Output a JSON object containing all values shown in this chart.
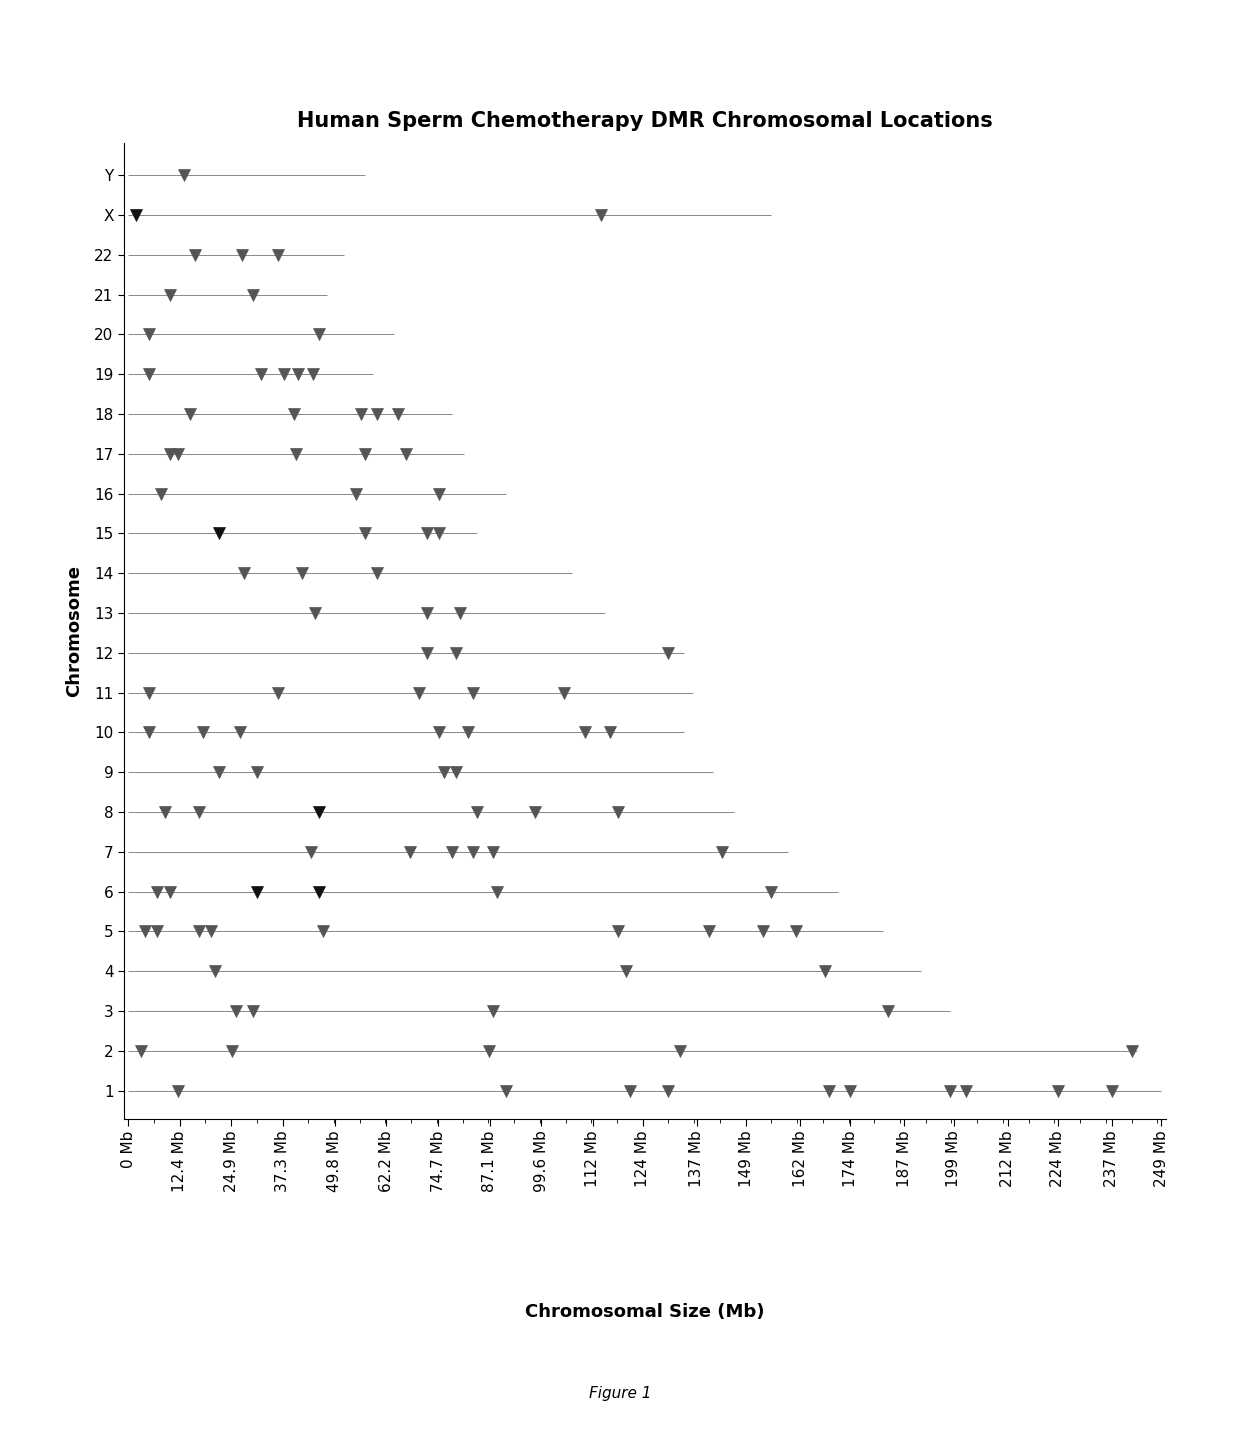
{
  "title": "Human Sperm Chemotherapy DMR Chromosomal Locations",
  "xlabel": "Chromosomal Size (Mb)",
  "ylabel": "Chromosome",
  "figure_note": "Figure 1",
  "xtick_labels": [
    "0 Mb",
    "12.4 Mb",
    "24.9 Mb",
    "37.3 Mb",
    "49.8 Mb",
    "62.2 Mb",
    "74.7 Mb",
    "87.1 Mb",
    "99.6 Mb",
    "112 Mb",
    "124 Mb",
    "137 Mb",
    "149 Mb",
    "162 Mb",
    "174 Mb",
    "187 Mb",
    "199 Mb",
    "212 Mb",
    "224 Mb",
    "237 Mb",
    "249 Mb"
  ],
  "xtick_values": [
    0,
    12.4,
    24.9,
    37.3,
    49.8,
    62.2,
    74.7,
    87.1,
    99.6,
    112,
    124,
    137,
    149,
    162,
    174,
    187,
    199,
    212,
    224,
    237,
    249
  ],
  "xmax": 249,
  "chromosomes": [
    "Y",
    "X",
    "22",
    "21",
    "20",
    "19",
    "18",
    "17",
    "16",
    "15",
    "14",
    "13",
    "12",
    "11",
    "10",
    "9",
    "8",
    "7",
    "6",
    "5",
    "4",
    "3",
    "2",
    "1"
  ],
  "chromosome_lengths": [
    57,
    155,
    52,
    48,
    64,
    59,
    78,
    81,
    91,
    84,
    107,
    115,
    134,
    136,
    134,
    141,
    146,
    159,
    171,
    182,
    191,
    198,
    243,
    249
  ],
  "dmr_positions": {
    "Y": [
      13.5
    ],
    "X": [
      2.0,
      114.0
    ],
    "22": [
      16.0,
      27.5,
      36.0
    ],
    "21": [
      10.0,
      30.0
    ],
    "20": [
      5.0,
      46.0
    ],
    "19": [
      5.0,
      32.0,
      37.5,
      41.0,
      44.5
    ],
    "18": [
      15.0,
      40.0,
      56.0,
      60.0,
      65.0
    ],
    "17": [
      10.0,
      12.0,
      40.5,
      57.0,
      67.0
    ],
    "16": [
      8.0,
      55.0,
      75.0
    ],
    "15": [
      22.0,
      57.0,
      72.0,
      75.0
    ],
    "14": [
      28.0,
      42.0,
      60.0
    ],
    "13": [
      45.0,
      72.0,
      80.0
    ],
    "12": [
      72.0,
      79.0,
      130.0
    ],
    "11": [
      5.0,
      36.0,
      70.0,
      83.0,
      105.0
    ],
    "10": [
      5.0,
      18.0,
      27.0,
      75.0,
      82.0,
      110.0,
      116.0
    ],
    "9": [
      22.0,
      31.0,
      76.0,
      79.0
    ],
    "8": [
      9.0,
      17.0,
      46.0,
      84.0,
      98.0,
      118.0
    ],
    "7": [
      44.0,
      68.0,
      78.0,
      83.0,
      88.0,
      143.0
    ],
    "6": [
      7.0,
      10.0,
      31.0,
      46.0,
      89.0,
      155.0
    ],
    "5": [
      4.0,
      7.0,
      17.0,
      20.0,
      47.0,
      118.0,
      140.0,
      153.0,
      161.0
    ],
    "4": [
      21.0,
      120.0,
      168.0
    ],
    "3": [
      26.0,
      30.0,
      88.0,
      183.0
    ],
    "2": [
      3.0,
      25.0,
      87.0,
      133.0,
      242.0
    ],
    "1": [
      12.0,
      91.0,
      121.0,
      130.0,
      169.0,
      174.0,
      198.0,
      202.0,
      224.0,
      237.0
    ]
  },
  "special_markers": {
    "X": [
      2.0
    ],
    "15": [
      22.0
    ],
    "8": [
      46.0
    ],
    "6": [
      31.0,
      46.0
    ]
  },
  "marker_color": "#555555",
  "black_marker_color": "#111111",
  "line_color": "#888888",
  "background_color": "#ffffff",
  "title_fontsize": 15,
  "axis_label_fontsize": 13,
  "tick_fontsize": 11
}
